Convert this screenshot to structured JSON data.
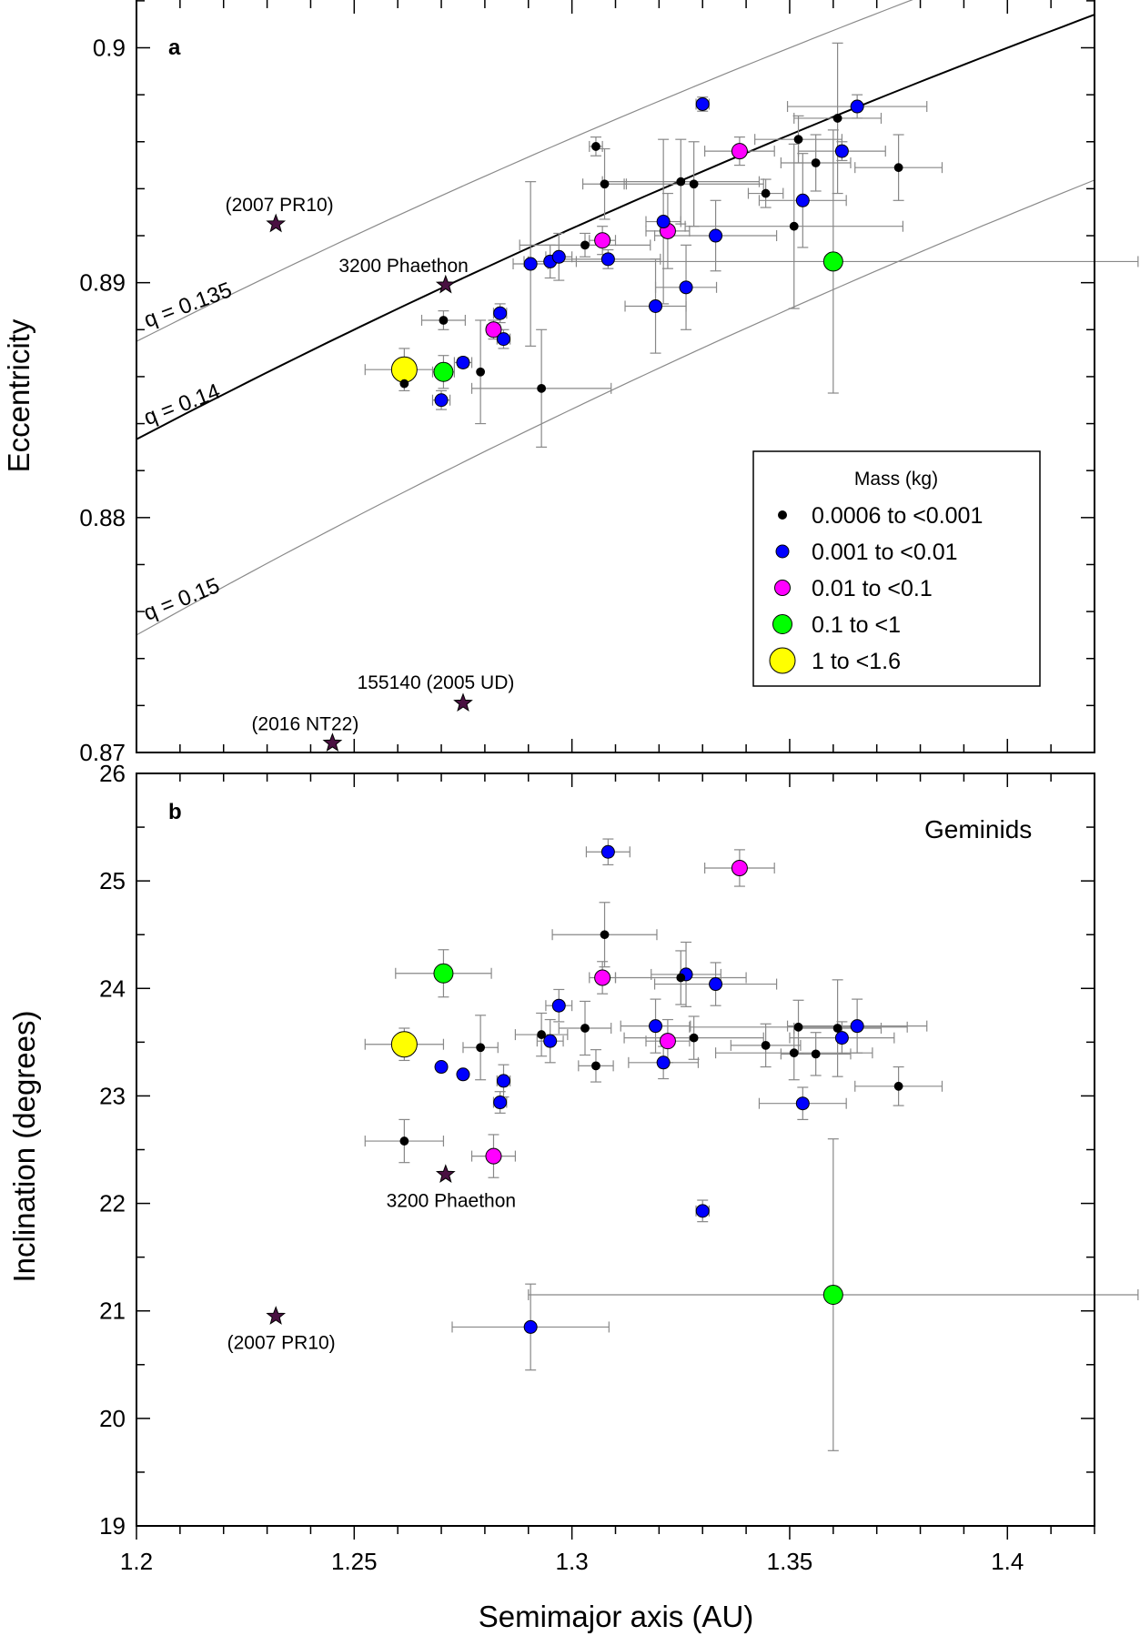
{
  "colors": {
    "black": "#000000",
    "blue": "#0000ff",
    "magenta": "#ff00ff",
    "green": "#00ff00",
    "yellow": "#ffff00",
    "errorbar": "#888888",
    "qline": "#8a8a8a",
    "star": "#4a1042"
  },
  "legend": {
    "title": "Mass (kg)",
    "items": [
      {
        "label": "0.0006 to <0.001",
        "color": "#000000",
        "size": "xs"
      },
      {
        "label": "0.001 to <0.01",
        "color": "#0000ff",
        "size": "s"
      },
      {
        "label": "0.01 to <0.1",
        "color": "#ff00ff",
        "size": "m"
      },
      {
        "label": "0.1 to <1",
        "color": "#00ff00",
        "size": "l"
      },
      {
        "label": "1 to <1.6",
        "color": "#ffff00",
        "size": "xl"
      }
    ]
  },
  "chart_data": [
    {
      "type": "scatter",
      "panel_label": "a",
      "xlim": [
        1.2,
        1.42
      ],
      "ylim": [
        0.87,
        0.902
      ],
      "ylabel": "Eccentricity",
      "xticks": [
        1.2,
        1.25,
        1.3,
        1.35,
        1.4
      ],
      "yticks": [
        0.87,
        0.88,
        0.89,
        0.9
      ],
      "yticklabels": [
        "0.87",
        "0.88",
        "0.89",
        "0.9"
      ],
      "curves": [
        {
          "label": "q = 0.135",
          "q": 0.135,
          "style": "gray"
        },
        {
          "label": "q = 0.14",
          "q": 0.14,
          "style": "black"
        },
        {
          "label": "q = 0.15",
          "q": 0.15,
          "style": "gray"
        }
      ],
      "named_objects": [
        {
          "name": "(2007 PR10)",
          "x": 1.232,
          "y": 0.8925
        },
        {
          "name": "3200 Phaethon",
          "x": 1.271,
          "y": 0.8899
        },
        {
          "name": "155140 (2005 UD)",
          "x": 1.275,
          "y": 0.8721
        },
        {
          "name": "(2016 NT22)",
          "x": 1.245,
          "y": 0.8704
        }
      ],
      "points": [
        {
          "x": 1.2615,
          "y": 0.8863,
          "m": "yellow",
          "xerr": 0.009,
          "yerr": 0.0009
        },
        {
          "x": 1.2705,
          "y": 0.8862,
          "m": "green",
          "xerr": 0.0025,
          "yerr": 0.0007
        },
        {
          "x": 1.36,
          "y": 0.8909,
          "m": "green",
          "xerr": 0.07,
          "yerr": 0.0056
        },
        {
          "x": 1.282,
          "y": 0.888,
          "m": "magenta",
          "xerr": 0.0015,
          "yerr": 0.0004
        },
        {
          "x": 1.307,
          "y": 0.8918,
          "m": "magenta",
          "xerr": 0.003,
          "yerr": 0.0006
        },
        {
          "x": 1.322,
          "y": 0.8922,
          "m": "magenta",
          "xerr": 0.005,
          "yerr": 0.0016
        },
        {
          "x": 1.3385,
          "y": 0.8956,
          "m": "magenta",
          "xerr": 0.008,
          "yerr": 0.0006
        },
        {
          "x": 1.27,
          "y": 0.885,
          "m": "blue",
          "xerr": 0.002,
          "yerr": 0.0004
        },
        {
          "x": 1.275,
          "y": 0.8866,
          "m": "blue",
          "xerr": 0.002,
          "yerr": 0.0002
        },
        {
          "x": 1.2835,
          "y": 0.8887,
          "m": "blue",
          "xerr": 0.0015,
          "yerr": 0.0004
        },
        {
          "x": 1.2843,
          "y": 0.8876,
          "m": "blue",
          "xerr": 0.0015,
          "yerr": 0.0004
        },
        {
          "x": 1.2905,
          "y": 0.8908,
          "m": "blue",
          "xerr": 0.004,
          "yerr": 0.0035
        },
        {
          "x": 1.295,
          "y": 0.8909,
          "m": "blue",
          "xerr": 0.006,
          "yerr": 0.0007
        },
        {
          "x": 1.297,
          "y": 0.8911,
          "m": "blue",
          "xerr": 0.003,
          "yerr": 0.001
        },
        {
          "x": 1.3083,
          "y": 0.8876,
          "m": "blue",
          "xerr": 0.0,
          "yerr": 0.0,
          "skip": true
        },
        {
          "x": 1.3083,
          "y": 0.891,
          "m": "blue",
          "xerr": 0.012,
          "yerr": 0.0004
        },
        {
          "x": 1.3192,
          "y": 0.889,
          "m": "blue",
          "xerr": 0.007,
          "yerr": 0.002
        },
        {
          "x": 1.321,
          "y": 0.8926,
          "m": "blue",
          "xerr": 0.004,
          "yerr": 0.0035
        },
        {
          "x": 1.3262,
          "y": 0.8898,
          "m": "blue",
          "xerr": 0.007,
          "yerr": 0.0018
        },
        {
          "x": 1.33,
          "y": 0.8976,
          "m": "blue",
          "xerr": 0.0015,
          "yerr": 0.0003
        },
        {
          "x": 1.333,
          "y": 0.892,
          "m": "blue",
          "xerr": 0.014,
          "yerr": 0.0015
        },
        {
          "x": 1.353,
          "y": 0.8935,
          "m": "blue",
          "xerr": 0.01,
          "yerr": 0.002
        },
        {
          "x": 1.362,
          "y": 0.8956,
          "m": "blue",
          "xerr": 0.01,
          "yerr": 0.0004
        },
        {
          "x": 1.3655,
          "y": 0.8975,
          "m": "blue",
          "xerr": 0.016,
          "yerr": 0.0005
        },
        {
          "x": 1.2615,
          "y": 0.8857,
          "m": "black",
          "xerr": 0.0,
          "yerr": 0.0
        },
        {
          "x": 1.2705,
          "y": 0.8884,
          "m": "black",
          "xerr": 0.005,
          "yerr": 0.0004
        },
        {
          "x": 1.279,
          "y": 0.8862,
          "m": "black",
          "xerr": 0.0,
          "yerr": 0.0022
        },
        {
          "x": 1.293,
          "y": 0.8855,
          "m": "black",
          "xerr": 0.016,
          "yerr": 0.0025
        },
        {
          "x": 1.303,
          "y": 0.8916,
          "m": "black",
          "xerr": 0.015,
          "yerr": 0.0005
        },
        {
          "x": 1.3055,
          "y": 0.8958,
          "m": "black",
          "xerr": 0.0015,
          "yerr": 0.0004
        },
        {
          "x": 1.3075,
          "y": 0.8942,
          "m": "black",
          "xerr": 0.005,
          "yerr": 0.0015
        },
        {
          "x": 1.325,
          "y": 0.8943,
          "m": "black",
          "xerr": 0.018,
          "yerr": 0.0018
        },
        {
          "x": 1.328,
          "y": 0.8942,
          "m": "black",
          "xerr": 0.016,
          "yerr": 0.0018
        },
        {
          "x": 1.3445,
          "y": 0.8938,
          "m": "black",
          "xerr": 0.004,
          "yerr": 0.0006
        },
        {
          "x": 1.351,
          "y": 0.8924,
          "m": "black",
          "xerr": 0.025,
          "yerr": 0.0035
        },
        {
          "x": 1.352,
          "y": 0.8961,
          "m": "black",
          "xerr": 0.01,
          "yerr": 0.001
        },
        {
          "x": 1.356,
          "y": 0.8951,
          "m": "black",
          "xerr": 0.008,
          "yerr": 0.0012
        },
        {
          "x": 1.361,
          "y": 0.897,
          "m": "black",
          "xerr": 0.01,
          "yerr": 0.0032
        },
        {
          "x": 1.375,
          "y": 0.8949,
          "m": "black",
          "xerr": 0.01,
          "yerr": 0.0014
        }
      ]
    },
    {
      "type": "scatter",
      "panel_label": "b",
      "annotation": "Geminids",
      "xlim": [
        1.2,
        1.42
      ],
      "ylim": [
        19,
        26
      ],
      "xlabel": "Semimajor axis (AU)",
      "ylabel": "Inclination (degrees)",
      "xticks": [
        1.2,
        1.25,
        1.3,
        1.35,
        1.4
      ],
      "xticklabels": [
        "1.2",
        "1.25",
        "1.3",
        "1.35",
        "1.4"
      ],
      "yticks": [
        19,
        20,
        21,
        22,
        23,
        24,
        25,
        26
      ],
      "yticklabels": [
        "19",
        "20",
        "21",
        "22",
        "23",
        "24",
        "25",
        "26"
      ],
      "named_objects": [
        {
          "name": "3200 Phaethon",
          "x": 1.271,
          "y": 22.27
        },
        {
          "name": "(2007 PR10)",
          "x": 1.232,
          "y": 20.95
        }
      ],
      "points": [
        {
          "x": 1.2615,
          "y": 23.48,
          "m": "yellow",
          "xerr": 0.009,
          "yerr": 0.15
        },
        {
          "x": 1.2705,
          "y": 24.14,
          "m": "green",
          "xerr": 0.011,
          "yerr": 0.22
        },
        {
          "x": 1.36,
          "y": 21.15,
          "m": "green",
          "xerr": 0.07,
          "yerr": 1.45
        },
        {
          "x": 1.282,
          "y": 22.44,
          "m": "magenta",
          "xerr": 0.005,
          "yerr": 0.2
        },
        {
          "x": 1.307,
          "y": 24.1,
          "m": "magenta",
          "xerr": 0.003,
          "yerr": 0.15
        },
        {
          "x": 1.322,
          "y": 23.51,
          "m": "magenta",
          "xerr": 0.005,
          "yerr": 0.2
        },
        {
          "x": 1.3385,
          "y": 25.12,
          "m": "magenta",
          "xerr": 0.008,
          "yerr": 0.17
        },
        {
          "x": 1.27,
          "y": 23.27,
          "m": "blue",
          "xerr": 0.0,
          "yerr": 0.0
        },
        {
          "x": 1.275,
          "y": 23.2,
          "m": "blue",
          "xerr": 0.0,
          "yerr": 0.0
        },
        {
          "x": 1.2835,
          "y": 22.94,
          "m": "blue",
          "xerr": 0.0015,
          "yerr": 0.1
        },
        {
          "x": 1.2843,
          "y": 23.14,
          "m": "blue",
          "xerr": 0.0015,
          "yerr": 0.15
        },
        {
          "x": 1.2905,
          "y": 20.85,
          "m": "blue",
          "xerr": 0.018,
          "yerr": 0.4
        },
        {
          "x": 1.295,
          "y": 23.51,
          "m": "blue",
          "xerr": 0.003,
          "yerr": 0.2
        },
        {
          "x": 1.297,
          "y": 23.84,
          "m": "blue",
          "xerr": 0.003,
          "yerr": 0.15
        },
        {
          "x": 1.3083,
          "y": 25.27,
          "m": "blue",
          "xerr": 0.005,
          "yerr": 0.12
        },
        {
          "x": 1.3192,
          "y": 23.65,
          "m": "blue",
          "xerr": 0.008,
          "yerr": 0.25
        },
        {
          "x": 1.321,
          "y": 23.31,
          "m": "blue",
          "xerr": 0.008,
          "yerr": 0.15
        },
        {
          "x": 1.3262,
          "y": 24.13,
          "m": "blue",
          "xerr": 0.008,
          "yerr": 0.3
        },
        {
          "x": 1.33,
          "y": 21.93,
          "m": "blue",
          "xerr": 0.0015,
          "yerr": 0.1
        },
        {
          "x": 1.333,
          "y": 24.04,
          "m": "blue",
          "xerr": 0.014,
          "yerr": 0.2
        },
        {
          "x": 1.353,
          "y": 22.93,
          "m": "blue",
          "xerr": 0.01,
          "yerr": 0.15
        },
        {
          "x": 1.362,
          "y": 23.54,
          "m": "blue",
          "xerr": 0.012,
          "yerr": 0.15
        },
        {
          "x": 1.3655,
          "y": 23.65,
          "m": "blue",
          "xerr": 0.016,
          "yerr": 0.25
        },
        {
          "x": 1.2615,
          "y": 22.58,
          "m": "black",
          "xerr": 0.009,
          "yerr": 0.2
        },
        {
          "x": 1.279,
          "y": 23.45,
          "m": "black",
          "xerr": 0.004,
          "yerr": 0.3
        },
        {
          "x": 1.293,
          "y": 23.57,
          "m": "black",
          "xerr": 0.006,
          "yerr": 0.2
        },
        {
          "x": 1.303,
          "y": 23.63,
          "m": "black",
          "xerr": 0.006,
          "yerr": 0.25
        },
        {
          "x": 1.3055,
          "y": 23.28,
          "m": "black",
          "xerr": 0.004,
          "yerr": 0.15
        },
        {
          "x": 1.3075,
          "y": 24.5,
          "m": "black",
          "xerr": 0.012,
          "yerr": 0.3
        },
        {
          "x": 1.325,
          "y": 24.1,
          "m": "black",
          "xerr": 0.015,
          "yerr": 0.25
        },
        {
          "x": 1.328,
          "y": 23.54,
          "m": "black",
          "xerr": 0.016,
          "yerr": 0.2
        },
        {
          "x": 1.3445,
          "y": 23.47,
          "m": "black",
          "xerr": 0.008,
          "yerr": 0.2
        },
        {
          "x": 1.351,
          "y": 23.4,
          "m": "black",
          "xerr": 0.018,
          "yerr": 0.25
        },
        {
          "x": 1.352,
          "y": 23.64,
          "m": "black",
          "xerr": 0.025,
          "yerr": 0.25
        },
        {
          "x": 1.356,
          "y": 23.39,
          "m": "black",
          "xerr": 0.008,
          "yerr": 0.2
        },
        {
          "x": 1.361,
          "y": 23.63,
          "m": "black",
          "xerr": 0.01,
          "yerr": 0.45
        },
        {
          "x": 1.375,
          "y": 23.09,
          "m": "black",
          "xerr": 0.01,
          "yerr": 0.18
        }
      ]
    }
  ]
}
